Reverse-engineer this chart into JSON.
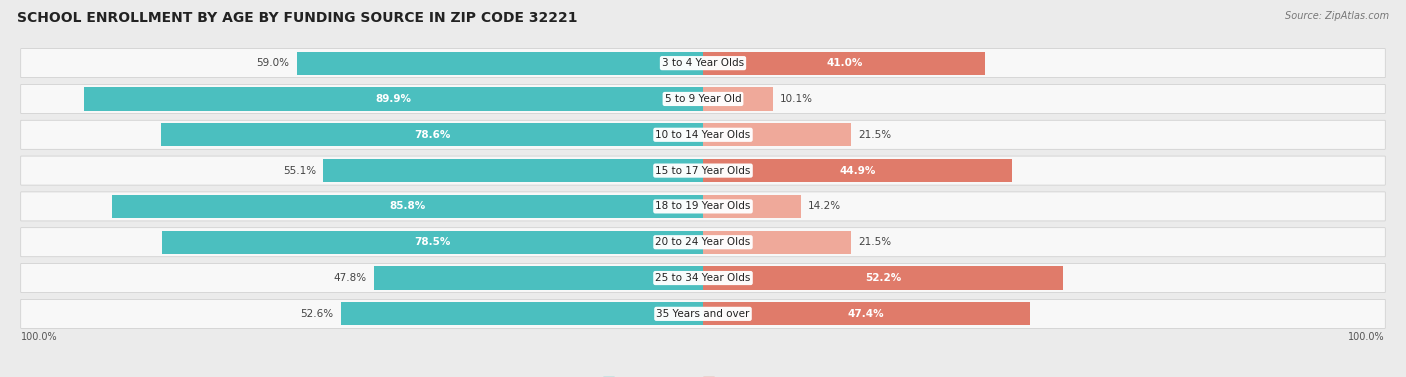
{
  "title": "SCHOOL ENROLLMENT BY AGE BY FUNDING SOURCE IN ZIP CODE 32221",
  "source": "Source: ZipAtlas.com",
  "categories": [
    "3 to 4 Year Olds",
    "5 to 9 Year Old",
    "10 to 14 Year Olds",
    "15 to 17 Year Olds",
    "18 to 19 Year Olds",
    "20 to 24 Year Olds",
    "25 to 34 Year Olds",
    "35 Years and over"
  ],
  "public_values": [
    59.0,
    89.9,
    78.6,
    55.1,
    85.8,
    78.5,
    47.8,
    52.6
  ],
  "private_values": [
    41.0,
    10.1,
    21.5,
    44.9,
    14.2,
    21.5,
    52.2,
    47.4
  ],
  "public_color": "#4BBFBF",
  "private_color": "#E07B6A",
  "private_color_light": "#EFA99A",
  "background_color": "#EBEBEB",
  "bar_background": "#F8F8F8",
  "title_fontsize": 10,
  "label_fontsize": 7.5,
  "tick_fontsize": 7,
  "legend_fontsize": 8,
  "source_fontsize": 7
}
